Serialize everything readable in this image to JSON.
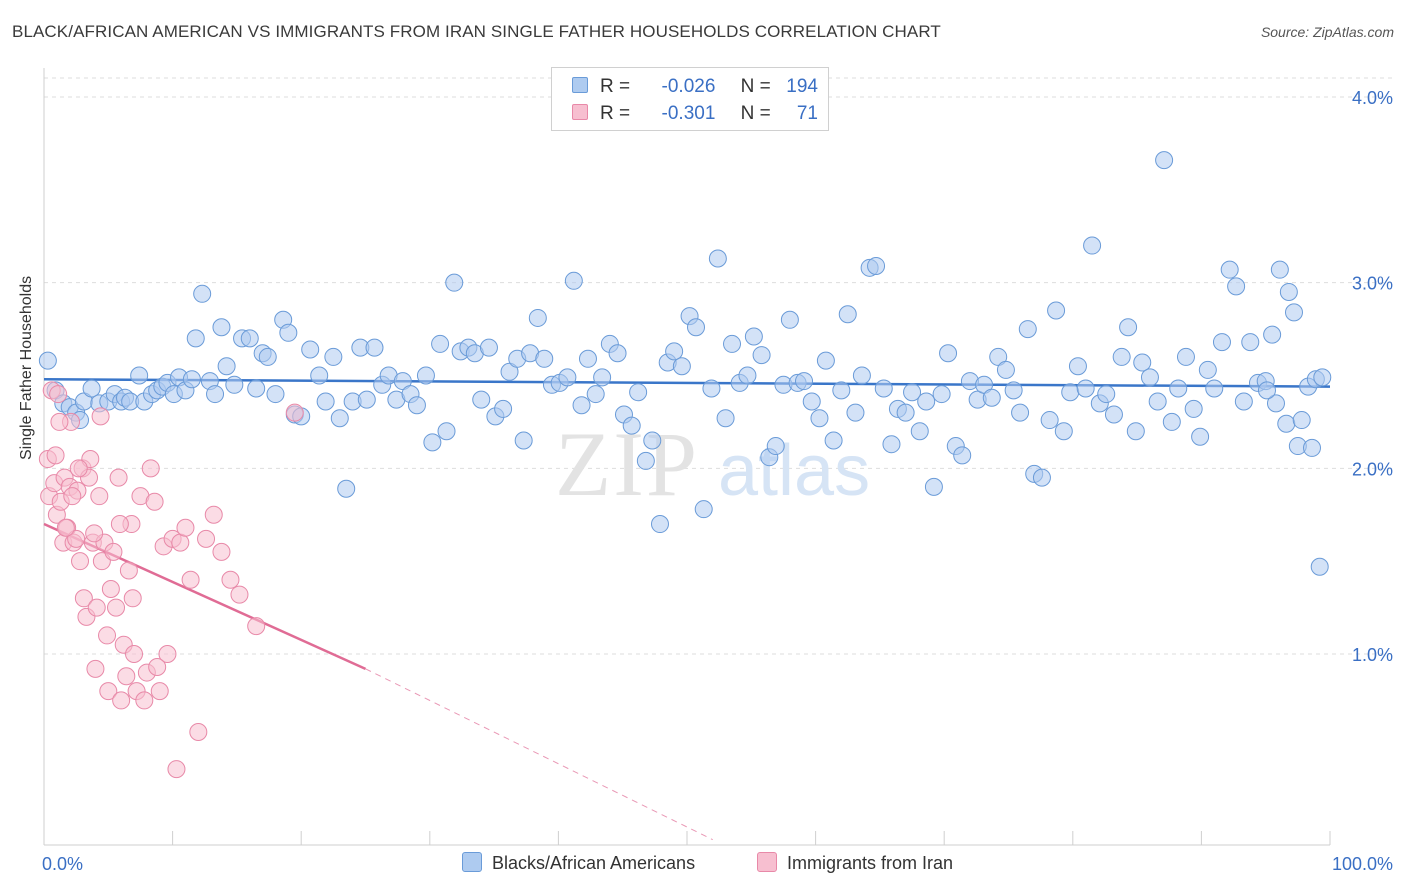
{
  "header": {
    "title": "BLACK/AFRICAN AMERICAN VS IMMIGRANTS FROM IRAN SINGLE FATHER HOUSEHOLDS CORRELATION CHART",
    "source": "Source: ZipAtlas.com"
  },
  "legend": {
    "blue": {
      "r_label": "R =",
      "r_value": "-0.026",
      "n_label": "N =",
      "n_value": "194"
    },
    "pink": {
      "r_label": "R =",
      "r_value": "-0.301",
      "n_label": "N =",
      "n_value": "71"
    }
  },
  "colors": {
    "blue_fill": "#aecbf0",
    "blue_stroke": "#6a9bd8",
    "blue_line": "#3a76c9",
    "pink_fill": "#f7bfd0",
    "pink_stroke": "#e889a8",
    "pink_line": "#e06c95",
    "tick_label": "#3a6fc4",
    "grid": "#dddddd"
  },
  "watermark": {
    "zip": "ZIP",
    "atlas": "atlas"
  },
  "chart_data": {
    "type": "scatter",
    "title": "BLACK/AFRICAN AMERICAN VS IMMIGRANTS FROM IRAN SINGLE FATHER HOUSEHOLDS CORRELATION CHART",
    "xlabel": "",
    "ylabel": "Single Father Households",
    "xlim": [
      0,
      100
    ],
    "ylim": [
      0,
      4.2
    ],
    "x_tick_labels": [
      "0.0%",
      "100.0%"
    ],
    "y_ticks": [
      1.0,
      2.0,
      3.0,
      4.0
    ],
    "y_tick_labels": [
      "1.0%",
      "2.0%",
      "3.0%",
      "4.0%"
    ],
    "legend_position": "top-center",
    "series": [
      {
        "name": "Blacks/African Americans",
        "color": "#6a9bd8",
        "trend": {
          "x": [
            0,
            100
          ],
          "y": [
            2.48,
            2.44
          ]
        },
        "points": [
          [
            0.3,
            2.58
          ],
          [
            0.9,
            2.42
          ],
          [
            1.5,
            2.35
          ],
          [
            2.0,
            2.33
          ],
          [
            2.5,
            2.3
          ],
          [
            2.8,
            2.26
          ],
          [
            3.1,
            2.36
          ],
          [
            3.7,
            2.43
          ],
          [
            4.3,
            2.35
          ],
          [
            5.0,
            2.36
          ],
          [
            5.5,
            2.4
          ],
          [
            6.0,
            2.36
          ],
          [
            6.3,
            2.38
          ],
          [
            6.7,
            2.36
          ],
          [
            7.4,
            2.5
          ],
          [
            7.8,
            2.36
          ],
          [
            8.4,
            2.4
          ],
          [
            8.8,
            2.42
          ],
          [
            9.2,
            2.44
          ],
          [
            9.6,
            2.46
          ],
          [
            10.1,
            2.4
          ],
          [
            10.5,
            2.49
          ],
          [
            11.0,
            2.42
          ],
          [
            11.5,
            2.48
          ],
          [
            11.8,
            2.7
          ],
          [
            12.3,
            2.94
          ],
          [
            12.9,
            2.47
          ],
          [
            13.3,
            2.4
          ],
          [
            13.8,
            2.76
          ],
          [
            14.2,
            2.55
          ],
          [
            14.8,
            2.45
          ],
          [
            15.4,
            2.7
          ],
          [
            16.0,
            2.7
          ],
          [
            16.5,
            2.43
          ],
          [
            17.0,
            2.62
          ],
          [
            17.4,
            2.6
          ],
          [
            18.0,
            2.4
          ],
          [
            18.6,
            2.8
          ],
          [
            19.0,
            2.73
          ],
          [
            19.5,
            2.29
          ],
          [
            20.0,
            2.28
          ],
          [
            20.7,
            2.64
          ],
          [
            21.4,
            2.5
          ],
          [
            21.9,
            2.36
          ],
          [
            22.5,
            2.6
          ],
          [
            23.0,
            2.27
          ],
          [
            23.5,
            1.89
          ],
          [
            24.0,
            2.36
          ],
          [
            24.6,
            2.65
          ],
          [
            25.1,
            2.37
          ],
          [
            25.7,
            2.65
          ],
          [
            26.3,
            2.45
          ],
          [
            26.8,
            2.5
          ],
          [
            27.4,
            2.37
          ],
          [
            27.9,
            2.47
          ],
          [
            28.5,
            2.4
          ],
          [
            29.0,
            2.34
          ],
          [
            29.7,
            2.5
          ],
          [
            30.2,
            2.14
          ],
          [
            30.8,
            2.67
          ],
          [
            31.3,
            2.2
          ],
          [
            31.9,
            3.0
          ],
          [
            32.4,
            2.63
          ],
          [
            33.0,
            2.65
          ],
          [
            33.5,
            2.62
          ],
          [
            34.0,
            2.37
          ],
          [
            34.6,
            2.65
          ],
          [
            35.1,
            2.28
          ],
          [
            35.7,
            2.32
          ],
          [
            36.2,
            2.52
          ],
          [
            36.8,
            2.59
          ],
          [
            37.3,
            2.15
          ],
          [
            37.8,
            2.62
          ],
          [
            38.4,
            2.81
          ],
          [
            38.9,
            2.59
          ],
          [
            39.5,
            2.45
          ],
          [
            40.1,
            2.46
          ],
          [
            40.7,
            2.49
          ],
          [
            41.2,
            3.01
          ],
          [
            41.8,
            2.34
          ],
          [
            42.3,
            2.59
          ],
          [
            42.9,
            2.4
          ],
          [
            43.4,
            2.49
          ],
          [
            44.0,
            2.67
          ],
          [
            44.6,
            2.62
          ],
          [
            45.1,
            2.29
          ],
          [
            45.7,
            2.23
          ],
          [
            46.2,
            2.41
          ],
          [
            46.8,
            2.04
          ],
          [
            47.3,
            2.15
          ],
          [
            47.9,
            1.7
          ],
          [
            48.5,
            2.57
          ],
          [
            49.0,
            2.63
          ],
          [
            49.6,
            2.55
          ],
          [
            50.2,
            2.82
          ],
          [
            50.7,
            2.76
          ],
          [
            51.3,
            1.78
          ],
          [
            51.9,
            2.43
          ],
          [
            52.4,
            3.13
          ],
          [
            53.0,
            2.27
          ],
          [
            53.5,
            2.67
          ],
          [
            54.1,
            2.46
          ],
          [
            54.7,
            2.5
          ],
          [
            55.2,
            2.71
          ],
          [
            55.8,
            2.61
          ],
          [
            56.4,
            2.06
          ],
          [
            56.9,
            2.12
          ],
          [
            57.5,
            2.45
          ],
          [
            58.0,
            2.8
          ],
          [
            58.6,
            2.46
          ],
          [
            59.1,
            2.47
          ],
          [
            59.7,
            2.36
          ],
          [
            60.3,
            2.27
          ],
          [
            60.8,
            2.58
          ],
          [
            61.4,
            2.15
          ],
          [
            62.0,
            2.42
          ],
          [
            62.5,
            2.83
          ],
          [
            63.1,
            2.3
          ],
          [
            63.6,
            2.5
          ],
          [
            64.2,
            3.08
          ],
          [
            64.7,
            3.09
          ],
          [
            65.3,
            2.43
          ],
          [
            65.9,
            2.13
          ],
          [
            66.4,
            2.32
          ],
          [
            67.0,
            2.3
          ],
          [
            67.5,
            2.41
          ],
          [
            68.1,
            2.2
          ],
          [
            68.6,
            2.36
          ],
          [
            69.2,
            1.9
          ],
          [
            69.8,
            2.4
          ],
          [
            70.3,
            2.62
          ],
          [
            70.9,
            2.12
          ],
          [
            71.4,
            2.07
          ],
          [
            72.0,
            2.47
          ],
          [
            72.6,
            2.37
          ],
          [
            73.1,
            2.45
          ],
          [
            73.7,
            2.38
          ],
          [
            74.2,
            2.6
          ],
          [
            74.8,
            2.53
          ],
          [
            75.4,
            2.42
          ],
          [
            75.9,
            2.3
          ],
          [
            76.5,
            2.75
          ],
          [
            77.0,
            1.97
          ],
          [
            77.6,
            1.95
          ],
          [
            78.2,
            2.26
          ],
          [
            78.7,
            2.85
          ],
          [
            79.3,
            2.2
          ],
          [
            79.8,
            2.41
          ],
          [
            80.4,
            2.55
          ],
          [
            81.0,
            2.43
          ],
          [
            81.5,
            3.2
          ],
          [
            82.1,
            2.35
          ],
          [
            82.6,
            2.4
          ],
          [
            83.2,
            2.29
          ],
          [
            83.8,
            2.6
          ],
          [
            84.3,
            2.76
          ],
          [
            84.9,
            2.2
          ],
          [
            85.4,
            2.57
          ],
          [
            86.0,
            2.49
          ],
          [
            86.6,
            2.36
          ],
          [
            87.1,
            3.66
          ],
          [
            87.7,
            2.25
          ],
          [
            88.2,
            2.43
          ],
          [
            88.8,
            2.6
          ],
          [
            89.4,
            2.32
          ],
          [
            89.9,
            2.17
          ],
          [
            90.5,
            2.53
          ],
          [
            91.0,
            2.43
          ],
          [
            91.6,
            2.68
          ],
          [
            92.2,
            3.07
          ],
          [
            92.7,
            2.98
          ],
          [
            93.3,
            2.36
          ],
          [
            93.8,
            2.68
          ],
          [
            94.4,
            2.46
          ],
          [
            95.0,
            2.47
          ],
          [
            95.5,
            2.72
          ],
          [
            96.1,
            3.07
          ],
          [
            96.6,
            2.24
          ],
          [
            97.2,
            2.84
          ],
          [
            97.8,
            2.26
          ],
          [
            98.3,
            2.44
          ],
          [
            98.9,
            2.48
          ],
          [
            99.4,
            2.49
          ],
          [
            96.8,
            2.95
          ],
          [
            97.5,
            2.12
          ],
          [
            98.6,
            2.11
          ],
          [
            95.8,
            2.35
          ],
          [
            95.1,
            2.42
          ],
          [
            99.2,
            1.47
          ]
        ]
      },
      {
        "name": "Immigrants from Iran",
        "color": "#e889a8",
        "trend": {
          "x": [
            0,
            25
          ],
          "y": [
            1.7,
            0.92
          ]
        },
        "trend_dashed": {
          "x": [
            25,
            52
          ],
          "y": [
            0.92,
            0.0
          ]
        },
        "points": [
          [
            0.3,
            2.05
          ],
          [
            0.4,
            1.85
          ],
          [
            0.6,
            2.42
          ],
          [
            0.8,
            1.92
          ],
          [
            1.0,
            1.75
          ],
          [
            1.1,
            2.4
          ],
          [
            1.3,
            1.82
          ],
          [
            1.5,
            1.6
          ],
          [
            1.6,
            1.95
          ],
          [
            1.8,
            1.68
          ],
          [
            2.0,
            1.9
          ],
          [
            2.1,
            2.25
          ],
          [
            2.3,
            1.6
          ],
          [
            2.5,
            1.62
          ],
          [
            2.6,
            1.88
          ],
          [
            2.8,
            1.5
          ],
          [
            3.0,
            2.0
          ],
          [
            3.1,
            1.3
          ],
          [
            3.3,
            1.2
          ],
          [
            3.5,
            1.95
          ],
          [
            3.6,
            2.05
          ],
          [
            3.8,
            1.6
          ],
          [
            4.0,
            0.92
          ],
          [
            4.1,
            1.25
          ],
          [
            4.3,
            1.85
          ],
          [
            4.5,
            1.5
          ],
          [
            4.7,
            1.6
          ],
          [
            4.9,
            1.1
          ],
          [
            5.0,
            0.8
          ],
          [
            5.2,
            1.35
          ],
          [
            5.4,
            1.55
          ],
          [
            5.6,
            1.25
          ],
          [
            5.8,
            1.95
          ],
          [
            6.0,
            0.75
          ],
          [
            6.2,
            1.05
          ],
          [
            6.4,
            0.88
          ],
          [
            6.6,
            1.45
          ],
          [
            6.8,
            1.7
          ],
          [
            7.0,
            1.0
          ],
          [
            7.2,
            0.8
          ],
          [
            7.5,
            1.85
          ],
          [
            7.8,
            0.75
          ],
          [
            8.0,
            0.9
          ],
          [
            8.3,
            2.0
          ],
          [
            8.6,
            1.82
          ],
          [
            9.0,
            0.8
          ],
          [
            9.3,
            1.58
          ],
          [
            9.6,
            1.0
          ],
          [
            10.0,
            1.62
          ],
          [
            10.3,
            0.38
          ],
          [
            10.6,
            1.6
          ],
          [
            11.0,
            1.68
          ],
          [
            11.4,
            1.4
          ],
          [
            12.0,
            0.58
          ],
          [
            12.6,
            1.62
          ],
          [
            13.2,
            1.75
          ],
          [
            13.8,
            1.55
          ],
          [
            14.5,
            1.4
          ],
          [
            15.2,
            1.32
          ],
          [
            16.5,
            1.15
          ],
          [
            19.5,
            2.3
          ],
          [
            1.2,
            2.25
          ],
          [
            2.7,
            2.0
          ],
          [
            0.9,
            2.07
          ],
          [
            3.9,
            1.65
          ],
          [
            4.4,
            2.28
          ],
          [
            5.9,
            1.7
          ],
          [
            1.7,
            1.68
          ],
          [
            2.2,
            1.85
          ],
          [
            6.9,
            1.3
          ],
          [
            8.8,
            0.93
          ]
        ]
      }
    ]
  },
  "bottom_legend": {
    "blue_label": "Blacks/African Americans",
    "pink_label": "Immigrants from Iran"
  }
}
